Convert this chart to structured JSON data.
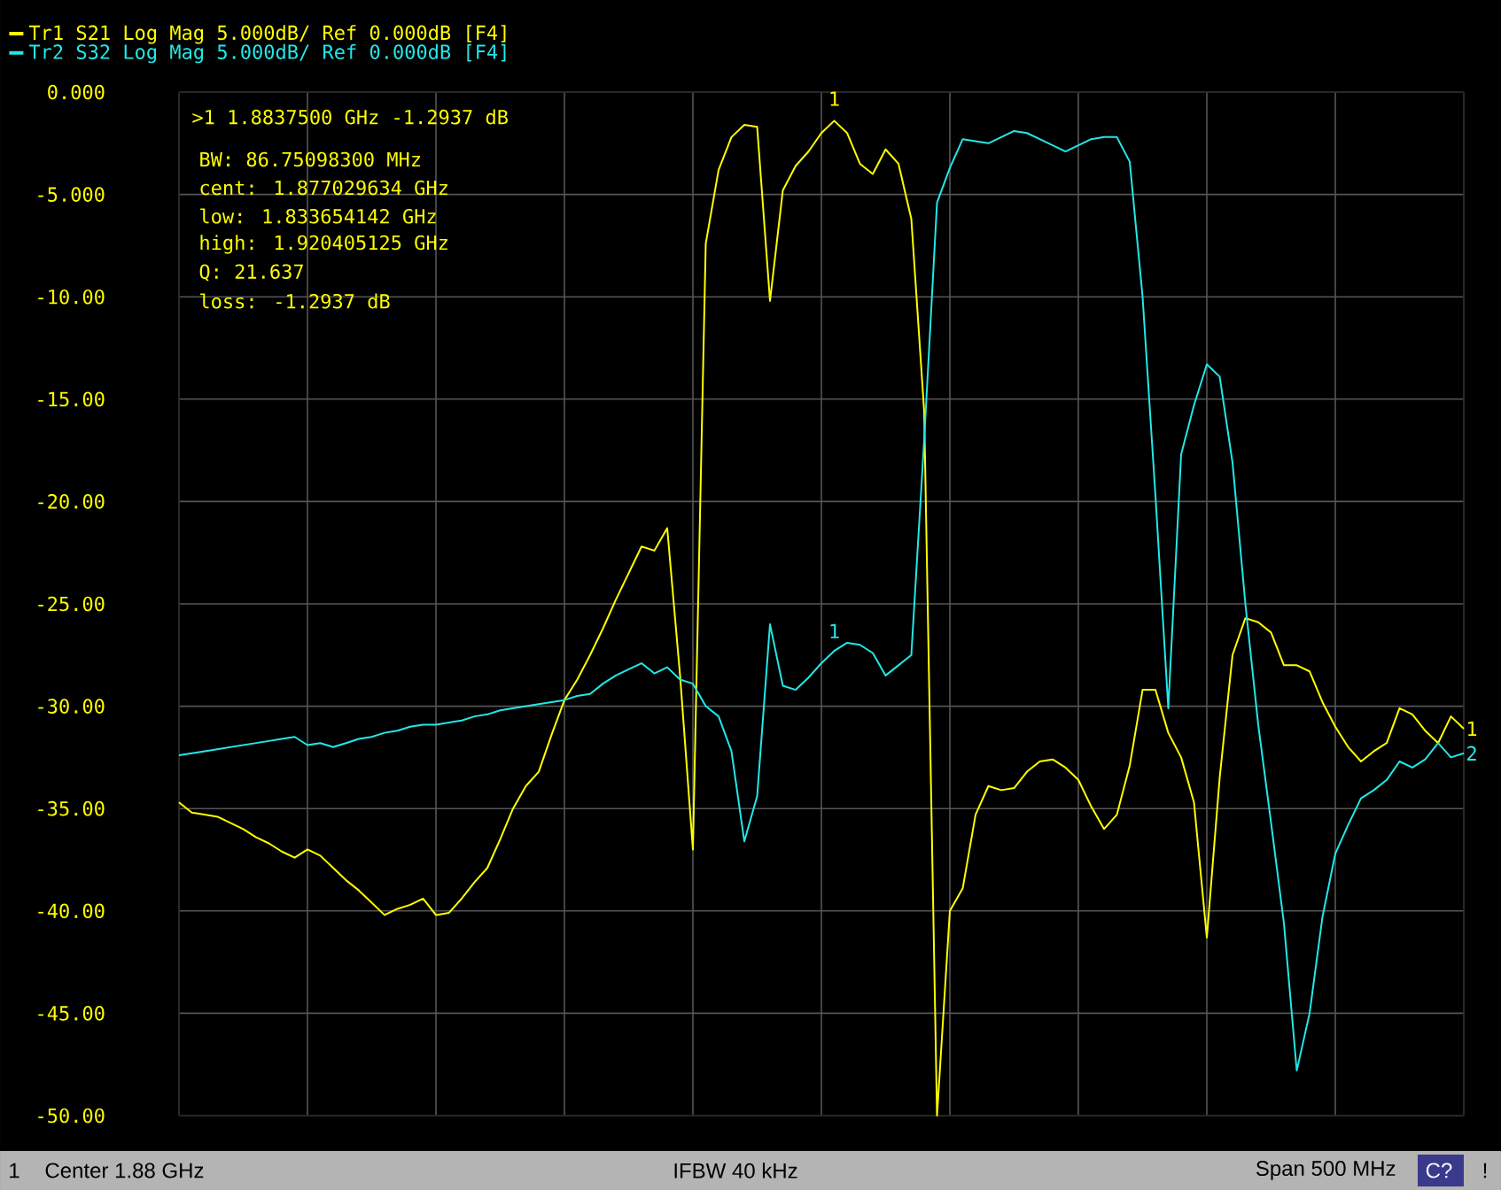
{
  "chart_data": {
    "type": "line",
    "categories": [
      null,
      null,
      null,
      null,
      null,
      null,
      null,
      null,
      null,
      null,
      null,
      null,
      null,
      null,
      null,
      null,
      null,
      null,
      null,
      null,
      null,
      null,
      null,
      null,
      null,
      null,
      null,
      null,
      null,
      null,
      null,
      null,
      null,
      null,
      null,
      null,
      null,
      null,
      null,
      null,
      null,
      null,
      null,
      null,
      null,
      null,
      null,
      null,
      null,
      null,
      null,
      null,
      null,
      null,
      null,
      null,
      null,
      null,
      null,
      null,
      null,
      null,
      null,
      null,
      null,
      null,
      null,
      null,
      null,
      null,
      null,
      null,
      null,
      null,
      null,
      null,
      null,
      null,
      null,
      null,
      null,
      null,
      null,
      null,
      null,
      null,
      null,
      null,
      null,
      null,
      null,
      null,
      null,
      null,
      null,
      null,
      null,
      null,
      null,
      null,
      null
    ],
    "ylim": [
      -50,
      0
    ],
    "yticks": [
      {
        "value": 0,
        "label": "0.000"
      },
      {
        "value": -5,
        "label": "-5.000"
      },
      {
        "value": -10,
        "label": "-10.00"
      },
      {
        "value": -15,
        "label": "-15.00"
      },
      {
        "value": -20,
        "label": "-20.00"
      },
      {
        "value": -25,
        "label": "-25.00"
      },
      {
        "value": -30,
        "label": "-30.00"
      },
      {
        "value": -35,
        "label": "-35.00"
      },
      {
        "value": -40,
        "label": "-40.00"
      },
      {
        "value": -45,
        "label": "-45.00"
      },
      {
        "value": -50,
        "label": "-50.00"
      }
    ],
    "tick_labels": "y",
    "grid": true,
    "legend": "top left",
    "line_style": "solid",
    "series": [
      {
        "name": "Tr1 S21 Log Mag 5.000dB/ Ref 0.000dB [F4]",
        "color": "#ffff00",
        "values": [
          -34.7,
          -35.2,
          -35.3,
          -35.4,
          -35.7,
          -36.0,
          -36.4,
          -36.7,
          -37.1,
          -37.4,
          -37.0,
          -37.3,
          -37.9,
          -38.5,
          -39.0,
          -39.6,
          -40.2,
          -39.9,
          -39.7,
          -39.4,
          -40.2,
          -40.1,
          -39.4,
          -38.6,
          -37.9,
          -36.5,
          -35.0,
          -33.9,
          -33.2,
          -31.4,
          -29.7,
          -28.7,
          -27.5,
          -26.2,
          -24.8,
          -23.5,
          -22.2,
          -22.4,
          -21.3,
          -28.5,
          -37.0,
          -7.4,
          -3.8,
          -2.2,
          -1.6,
          -1.7,
          -10.2,
          -4.8,
          -3.6,
          -2.9,
          -2.0,
          -1.4,
          -2.0,
          -3.5,
          -4.0,
          -2.8,
          -3.5,
          -6.2,
          -15.6,
          -50.0,
          -40.0,
          -38.9,
          -35.3,
          -33.9,
          -34.1,
          -34.0,
          -33.2,
          -32.7,
          -32.6,
          -33.0,
          -33.6,
          -34.9,
          -36.0,
          -35.3,
          -32.9,
          -29.2,
          -29.2,
          -31.3,
          -32.5,
          -34.7,
          -41.3,
          -33.5,
          -27.5,
          -25.7,
          -25.9,
          -26.4,
          -28.0,
          -28.0,
          -28.3,
          -29.8,
          -31.0,
          -32.0,
          -32.7,
          -32.2,
          -31.8,
          -30.1,
          -30.4,
          -31.2,
          -31.8,
          -30.5,
          -31.1
        ]
      },
      {
        "name": "Tr2 S32 Log Mag 5.000dB/ Ref 0.000dB [F4]",
        "color": "#22e8e8",
        "values": [
          -32.4,
          -32.3,
          -32.2,
          -32.1,
          -32.0,
          -31.9,
          -31.8,
          -31.7,
          -31.6,
          -31.5,
          -31.9,
          -31.8,
          -32.0,
          -31.8,
          -31.6,
          -31.5,
          -31.3,
          -31.2,
          -31.0,
          -30.9,
          -30.9,
          -30.8,
          -30.7,
          -30.5,
          -30.4,
          -30.2,
          -30.1,
          -30.0,
          -29.9,
          -29.8,
          -29.7,
          -29.5,
          -29.4,
          -28.9,
          -28.5,
          -28.2,
          -27.9,
          -28.4,
          -28.1,
          -28.7,
          -28.9,
          -30.0,
          -30.5,
          -32.2,
          -36.6,
          -34.4,
          -26.0,
          -29.0,
          -29.2,
          -28.6,
          -27.9,
          -27.3,
          -26.9,
          -27.0,
          -27.4,
          -28.5,
          -28.0,
          -27.5,
          -17.0,
          -5.4,
          -3.7,
          -2.3,
          -2.4,
          -2.5,
          -2.2,
          -1.9,
          -2.0,
          -2.3,
          -2.6,
          -2.9,
          -2.6,
          -2.3,
          -2.2,
          -2.2,
          -3.4,
          -10.0,
          -19.7,
          -30.1,
          -17.7,
          -15.3,
          -13.3,
          -13.9,
          -18.1,
          -25.0,
          -30.9,
          -35.7,
          -40.6,
          -47.8,
          -45.0,
          -40.3,
          -37.2,
          -35.8,
          -34.5,
          -34.1,
          -33.6,
          -32.7,
          -33.0,
          -32.6,
          -31.8,
          -32.5,
          -32.3
        ]
      }
    ],
    "annotations": [
      ">1  1.8837500 GHz -1.2937 dB",
      "BW:  86.75098300 MHz",
      "cent:  1.877029634 GHz",
      "low:  1.833654142 GHz",
      "high:  1.920405125 GHz",
      "Q:  21.637",
      "loss:  -1.2937 dB",
      "1",
      "Center 1.88 GHz",
      "IFBW 40 kHz",
      "Span 500 MHz",
      "C?",
      "!",
      "1",
      "2",
      {
        "text": "1",
        "y": -1.2937
      },
      {
        "text": "1",
        "y": -27.3
      }
    ]
  }
}
